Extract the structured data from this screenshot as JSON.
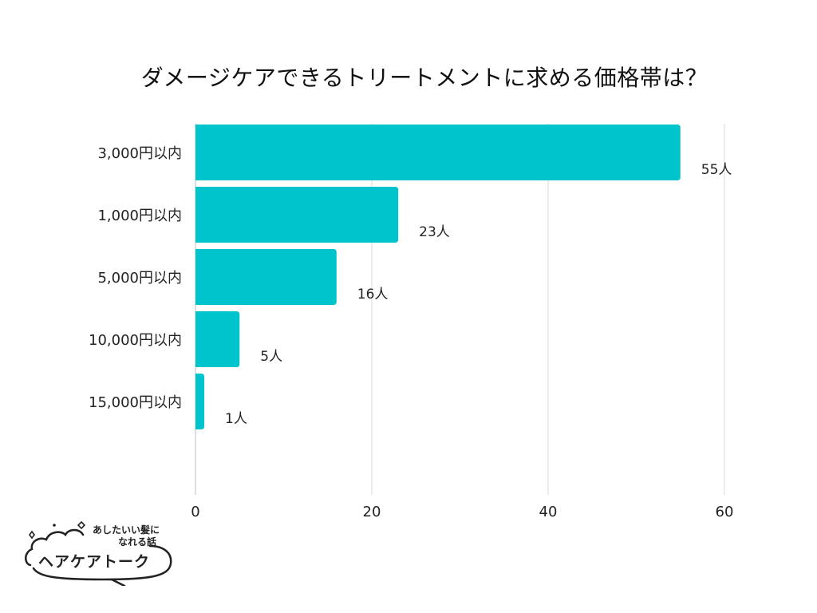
{
  "chart_data": {
    "type": "bar",
    "orientation": "horizontal",
    "title": "ダメージケアできるトリートメントに求める価格帯は？",
    "categories": [
      "3,000円以内",
      "1,000円以内",
      "5,000円以内",
      "10,000円以内",
      "15,000円以内"
    ],
    "values": [
      55,
      23,
      16,
      5,
      1
    ],
    "data_labels": [
      "55人",
      "23人",
      "16人",
      "5人",
      "1人"
    ],
    "x_ticks": [
      "0",
      "20",
      "40",
      "60"
    ],
    "xlim": [
      0,
      60
    ],
    "grid": true,
    "bar_color": "#00C4CC"
  },
  "logo": {
    "tagline_1": "あしたいい髪に",
    "tagline_2": "なれる話",
    "name": "ヘアケアトーク"
  }
}
